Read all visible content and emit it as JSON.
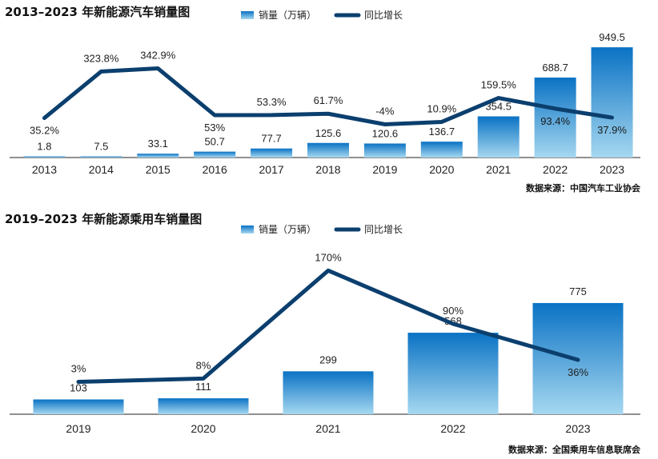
{
  "charts": {
    "colors": {
      "bar_top": "#0a72c4",
      "bar_bottom": "#a6d8f0",
      "line": "#0b3f6e",
      "axis": "#222222"
    },
    "legend_bar_icon": "bar-swatch-icon",
    "legend_line_icon": "line-swatch-icon"
  },
  "chart_data": [
    {
      "type": "bar",
      "title": "2013–2023 年新能源汽车销量图",
      "legend": {
        "bar": "销量（万辆）",
        "line": "同比增长"
      },
      "categories": [
        "2013",
        "2014",
        "2015",
        "2016",
        "2017",
        "2018",
        "2019",
        "2020",
        "2021",
        "2022",
        "2023"
      ],
      "series": [
        {
          "name": "销量（万辆）",
          "kind": "bar",
          "values": [
            1.8,
            7.5,
            33.1,
            50.7,
            77.7,
            125.6,
            120.6,
            136.7,
            354.5,
            688.7,
            949.5
          ],
          "labels": [
            "1.8",
            "7.5",
            "33.1",
            "50.7",
            "77.7",
            "125.6",
            "120.6",
            "136.7",
            "354.5",
            "688.7",
            "949.5"
          ]
        },
        {
          "name": "同比增长",
          "kind": "line",
          "values": [
            35.2,
            323.8,
            342.9,
            53,
            53.3,
            61.7,
            -4,
            10.9,
            159.5,
            93.4,
            37.9
          ],
          "labels": [
            "35.2%",
            "323.8%",
            "342.9%",
            "53%",
            "53.3%",
            "61.7%",
            "-4%",
            "10.9%",
            "159.5%",
            "93.4%",
            "37.9%"
          ]
        }
      ],
      "bar_ylim": [
        0,
        1000
      ],
      "line_ylim": [
        -200,
        420
      ],
      "source": "数据来源：中国汽车工业协会"
    },
    {
      "type": "bar",
      "title": "2019–2023 年新能源乘用车销量图",
      "legend": {
        "bar": "销量（万辆）",
        "line": "同比增长"
      },
      "categories": [
        "2019",
        "2020",
        "2021",
        "2022",
        "2023"
      ],
      "series": [
        {
          "name": "销量（万辆）",
          "kind": "bar",
          "values": [
            103,
            111,
            299,
            568,
            775
          ],
          "labels": [
            "103",
            "111",
            "299",
            "568",
            "775"
          ]
        },
        {
          "name": "同比增长",
          "kind": "line",
          "values": [
            3,
            8,
            170,
            90,
            36
          ],
          "labels": [
            "3%",
            "8%",
            "170%",
            "90%",
            "36%"
          ]
        }
      ],
      "bar_ylim": [
        0,
        1000
      ],
      "line_ylim": [
        -108,
        180
      ],
      "source": "数据来源：全国乘用车信息联席会"
    }
  ]
}
